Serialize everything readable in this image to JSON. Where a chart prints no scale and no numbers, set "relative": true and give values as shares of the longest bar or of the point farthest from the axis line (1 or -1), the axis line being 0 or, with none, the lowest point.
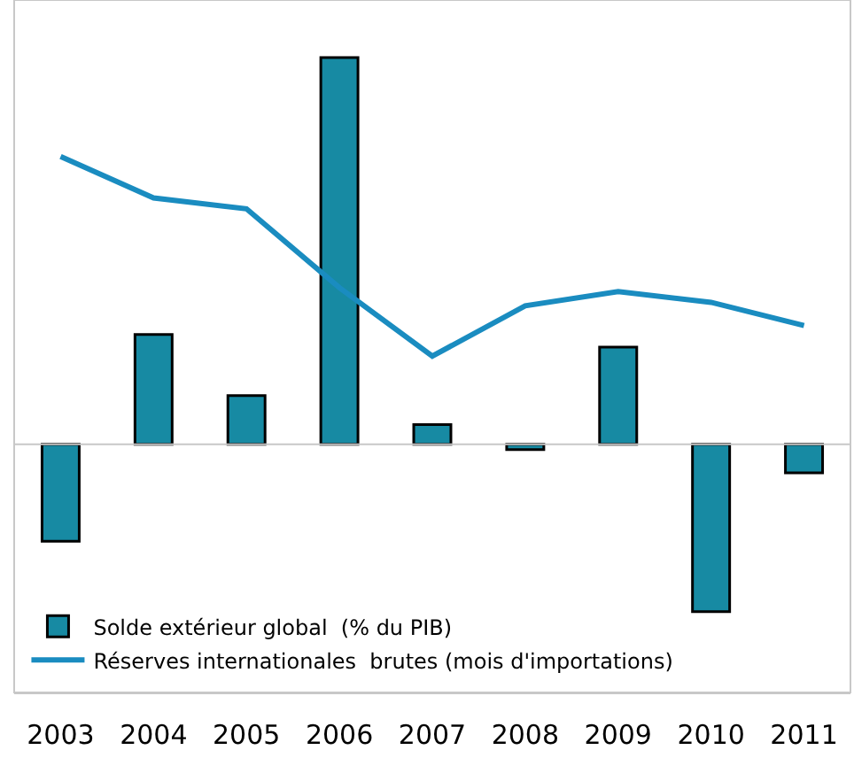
{
  "chart_data": {
    "type": "bar",
    "relative": true,
    "categories": [
      "2003",
      "2004",
      "2005",
      "2006",
      "2007",
      "2008",
      "2009",
      "2010",
      "2011"
    ],
    "series": [
      {
        "name": "Solde extérieur global  (% du PIB)",
        "color": "#178aa3",
        "values": [
          -0.251,
          0.284,
          0.126,
          1.0,
          0.051,
          -0.014,
          0.251,
          -0.433,
          -0.074
        ]
      },
      {
        "name": "Réserves internationales  brutes (mois d'importations)",
        "type": "line",
        "color": "#1a8cc0",
        "values": [
          0.744,
          0.637,
          0.609,
          0.405,
          0.228,
          0.358,
          0.395,
          0.367,
          0.307
        ]
      }
    ],
    "legend": "bottom left",
    "grid": false
  }
}
